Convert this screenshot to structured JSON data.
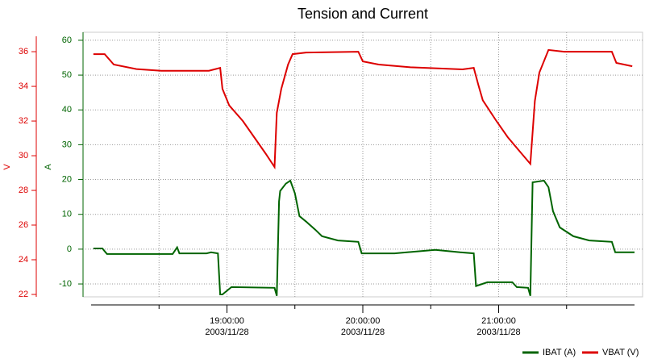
{
  "chart_data": {
    "type": "line",
    "title": "Tension and Current",
    "ylabel": "A",
    "y2label": "V",
    "xlim": [
      "18:00:00",
      "22:00:00"
    ],
    "xticks": [
      "19:00:00",
      "20:00:00",
      "21:00:00"
    ],
    "xminorticks": [
      "18:30:00",
      "19:30:00",
      "20:30:00",
      "21:30:00"
    ],
    "date": "2003/11/28",
    "ylim": [
      -13.7,
      62.3
    ],
    "yticks": [
      -10,
      0,
      10,
      20,
      30,
      40,
      50,
      60
    ],
    "y2lim": [
      21.86,
      37.12
    ],
    "y2ticks": [
      22,
      24,
      26,
      28,
      30,
      32,
      34,
      36
    ],
    "grid": true,
    "legend": "bottom-right",
    "series": [
      {
        "name": "IBAT (A)",
        "color": "#006400",
        "x": [
          "18:01:00",
          "18:05:00",
          "18:07:00",
          "18:36:00",
          "18:38:00",
          "18:39:00",
          "18:51:00",
          "18:53:00",
          "18:56:00",
          "18:57:00",
          "18:58:00",
          "19:02:00",
          "19:21:00",
          "19:22:00",
          "19:23:00",
          "19:23:30",
          "19:26:00",
          "19:28:00",
          "19:30:00",
          "19:32:00",
          "19:35:00",
          "19:39:00",
          "19:42:00",
          "19:49:00",
          "19:58:00",
          "19:59:30",
          "20:14:00",
          "20:32:00",
          "20:43:00",
          "20:49:00",
          "20:50:00",
          "20:55:00",
          "21:06:00",
          "21:08:00",
          "21:13:00",
          "21:14:00",
          "21:15:00",
          "21:20:00",
          "21:22:00",
          "21:24:00",
          "21:27:00",
          "21:33:00",
          "21:40:00",
          "21:50:00",
          "21:51:30",
          "22:00:00"
        ],
        "values": [
          0.2,
          0.2,
          -1.4,
          -1.4,
          0.5,
          -1.2,
          -1.2,
          -0.9,
          -1.2,
          -13,
          -13,
          -10.9,
          -11.1,
          -13.4,
          13.7,
          16.7,
          18.8,
          19.7,
          16,
          9.5,
          7.9,
          5.6,
          3.7,
          2.5,
          2.1,
          -1.2,
          -1.2,
          -0.2,
          -0.9,
          -1.2,
          -10.6,
          -9.5,
          -9.5,
          -10.9,
          -11.1,
          -13.4,
          19.2,
          19.7,
          17.8,
          10.9,
          6.25,
          3.7,
          2.5,
          2.1,
          -0.9,
          -0.9
        ]
      },
      {
        "name": "VBAT (V)",
        "color": "#dd0000",
        "axis": "y2",
        "x": [
          "18:01:00",
          "18:06:00",
          "18:10:00",
          "18:20:00",
          "18:31:00",
          "18:52:00",
          "18:57:00",
          "18:58:00",
          "19:01:00",
          "19:07:00",
          "19:12:00",
          "19:17:00",
          "19:21:00",
          "19:22:00",
          "19:24:00",
          "19:27:00",
          "19:29:00",
          "19:35:00",
          "19:58:00",
          "20:00:00",
          "20:07:00",
          "20:21:00",
          "20:44:00",
          "20:49:00",
          "20:51:00",
          "20:53:00",
          "20:59:00",
          "21:04:00",
          "21:10:00",
          "21:14:00",
          "21:16:00",
          "21:18:00",
          "21:22:00",
          "21:29:00",
          "21:50:00",
          "21:52:00",
          "21:59:00"
        ],
        "values": [
          35.86,
          35.86,
          35.26,
          35.0,
          34.9,
          34.9,
          35.07,
          33.86,
          32.9,
          32.0,
          31.07,
          30.14,
          29.35,
          32.47,
          33.86,
          35.26,
          35.86,
          35.95,
          36.0,
          35.44,
          35.26,
          35.1,
          34.98,
          35.07,
          34.1,
          33.2,
          32.0,
          31.07,
          30.14,
          29.53,
          33.16,
          34.8,
          36.1,
          36.0,
          36.0,
          35.35,
          35.16
        ]
      }
    ]
  }
}
